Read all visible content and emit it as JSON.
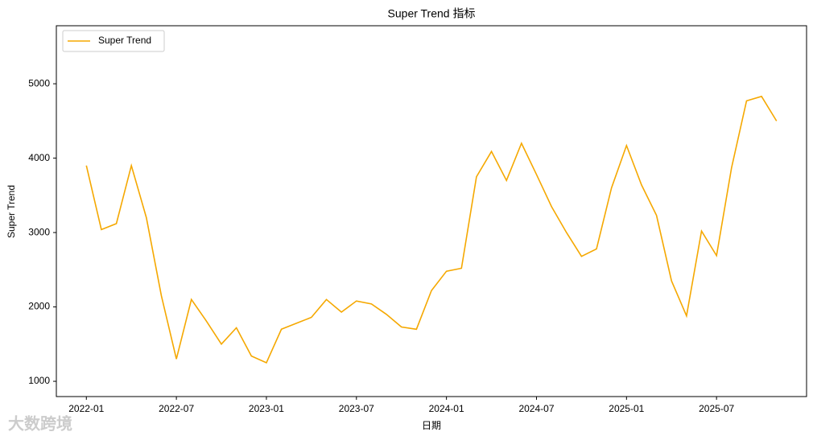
{
  "chart_data": {
    "type": "line",
    "title": "Super Trend 指标",
    "xlabel": "日期",
    "ylabel": "Super Trend",
    "watermark": "大数跨境",
    "x": [
      "2022-01",
      "2022-02",
      "2022-03",
      "2022-04",
      "2022-05",
      "2022-06",
      "2022-07",
      "2022-08",
      "2022-09",
      "2022-10",
      "2022-11",
      "2022-12",
      "2023-01",
      "2023-02",
      "2023-03",
      "2023-04",
      "2023-05",
      "2023-06",
      "2023-07",
      "2023-08",
      "2023-09",
      "2023-10",
      "2023-11",
      "2023-12",
      "2024-01",
      "2024-02",
      "2024-03",
      "2024-04",
      "2024-05",
      "2024-06",
      "2024-07",
      "2024-08",
      "2024-09",
      "2024-10",
      "2024-11",
      "2024-12",
      "2025-01",
      "2025-02",
      "2025-03",
      "2025-04",
      "2025-05",
      "2025-06",
      "2025-07",
      "2025-08",
      "2025-09",
      "2025-10",
      "2025-11"
    ],
    "series": [
      {
        "name": "Super Trend",
        "color": "#f5a800",
        "values": [
          3900,
          3040,
          3120,
          3900,
          3200,
          2150,
          1300,
          2100,
          1810,
          1500,
          1720,
          1340,
          1250,
          1700,
          1780,
          1860,
          2100,
          1930,
          2080,
          2040,
          1900,
          1730,
          1700,
          2220,
          2480,
          2520,
          3750,
          4090,
          3700,
          4200,
          3780,
          3350,
          3000,
          2680,
          2780,
          3600,
          4170,
          3640,
          3230,
          2350,
          1880,
          3020,
          2690,
          3870,
          4770,
          4830,
          4500
        ]
      }
    ],
    "xlim": [
      "2021-11",
      "2026-01"
    ],
    "xticks": [
      "2022-01",
      "2022-07",
      "2023-01",
      "2023-07",
      "2024-01",
      "2024-07",
      "2025-01",
      "2025-07"
    ],
    "ylim": [
      795,
      5780
    ],
    "yticks": [
      1000,
      2000,
      3000,
      4000,
      5000
    ],
    "legend": "upper left"
  }
}
